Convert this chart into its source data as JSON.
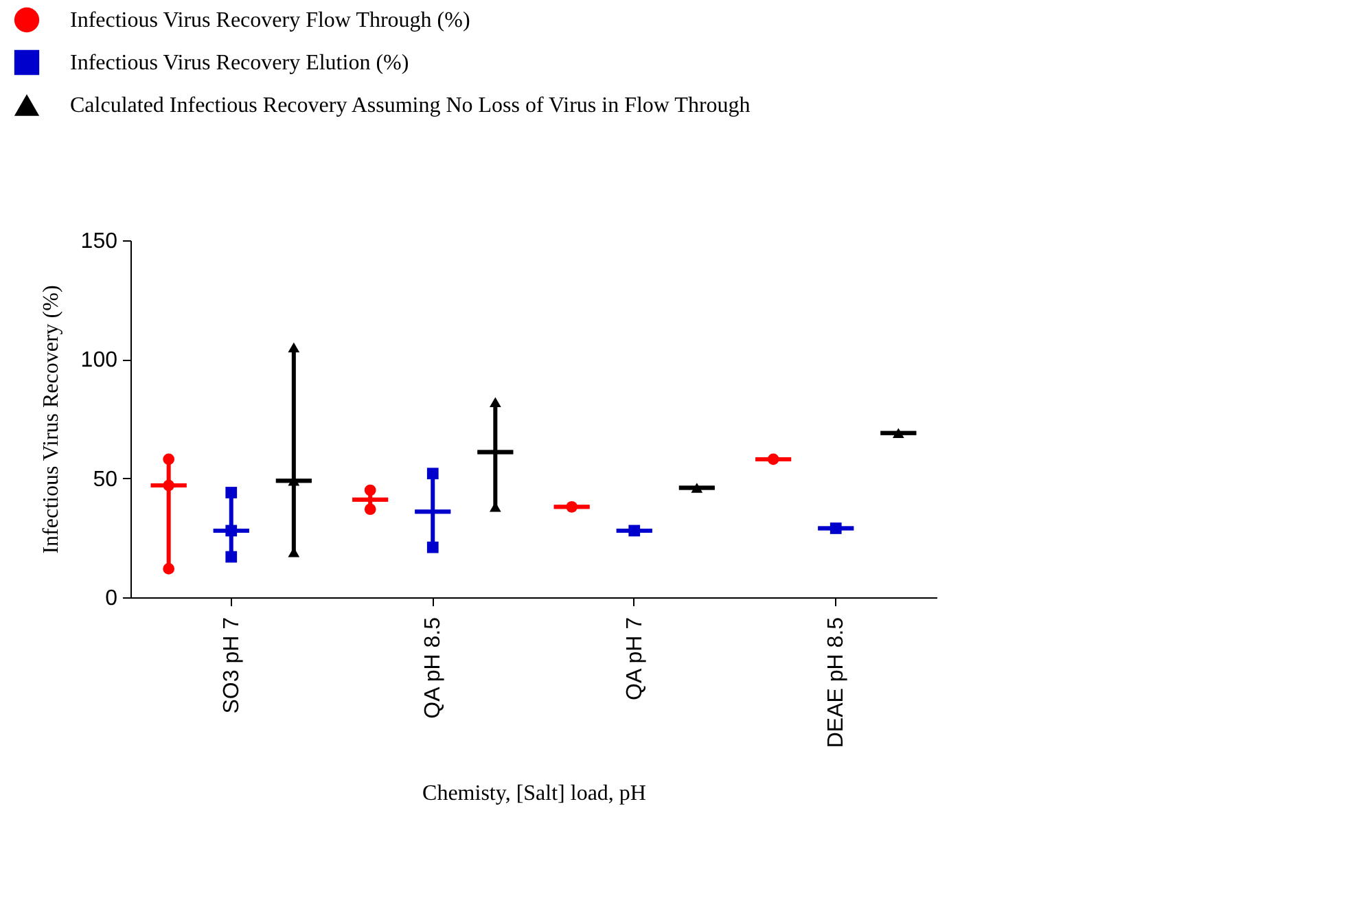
{
  "chart_data": {
    "type": "box",
    "xlabel": "Chemisty, [Salt] load, pH",
    "ylabel": "Infectious Virus Recovery (%)",
    "categories": [
      "SO3 pH 7",
      "QA pH 8.5",
      "QA pH 7",
      "DEAE pH 8.5"
    ],
    "ylim": [
      0,
      150
    ],
    "yticks": [
      0,
      50,
      100,
      150
    ],
    "grid": false,
    "legend": "top left",
    "series": [
      {
        "name": "Infectious Virus Recovery Flow Through (%)",
        "color": "#ff0000",
        "boxes": [
          {
            "low": 12,
            "q1": 47,
            "median": 47,
            "q3": 47,
            "high": 58
          },
          {
            "low": 37,
            "q1": 41,
            "median": 41,
            "q3": 41,
            "high": 45
          },
          {
            "low": 38,
            "q1": 38,
            "median": 38,
            "q3": 38,
            "high": 38
          },
          {
            "low": 58,
            "q1": 58,
            "median": 58,
            "q3": 58,
            "high": 58
          }
        ]
      },
      {
        "name": "Infectious Virus Recovery Elution (%)",
        "color": "#0000cc",
        "boxes": [
          {
            "low": 17,
            "q1": 28,
            "median": 28,
            "q3": 28,
            "high": 44
          },
          {
            "low": 21,
            "q1": 36,
            "median": 36,
            "q3": 36,
            "high": 52
          },
          {
            "low": 28,
            "q1": 28,
            "median": 28,
            "q3": 28,
            "high": 28
          },
          {
            "low": 29,
            "q1": 29,
            "median": 29,
            "q3": 29,
            "high": 29
          }
        ]
      },
      {
        "name": "Calculated Infectious Recovery Assuming No Loss of Virus in Flow Through",
        "color": "#000000",
        "boxes": [
          {
            "low": 19,
            "q1": 49,
            "median": 49,
            "q3": 49,
            "high": 105
          },
          {
            "low": 38,
            "q1": 61,
            "median": 61,
            "q3": 61,
            "high": 82
          },
          {
            "low": 46,
            "q1": 46,
            "median": 46,
            "q3": 46,
            "high": 46
          },
          {
            "low": 69,
            "q1": 69,
            "median": 69,
            "q3": 69,
            "high": 69
          }
        ]
      },
      {
        "type": "scatter",
        "color": "#ff0000",
        "marker": "circle",
        "x": [
          "SO3 pH 7",
          "SO3 pH 7",
          "SO3 pH 7",
          "QA pH 8.5",
          "QA pH 8.5",
          "QA pH 7",
          "DEAE pH 8.5"
        ],
        "values": [
          58,
          47,
          12,
          45,
          37,
          38,
          58
        ]
      },
      {
        "type": "scatter",
        "color": "#0000cc",
        "marker": "square",
        "x": [
          "SO3 pH 7",
          "SO3 pH 7",
          "SO3 pH 7",
          "QA pH 8.5",
          "QA pH 8.5",
          "QA pH 7",
          "DEAE pH 8.5"
        ],
        "values": [
          44,
          28,
          17,
          52,
          21,
          28,
          29
        ]
      },
      {
        "type": "scatter",
        "color": "#000000",
        "marker": "triangle",
        "x": [
          "SO3 pH 7",
          "SO3 pH 7",
          "SO3 pH 7",
          "QA pH 8.5",
          "QA pH 8.5",
          "QA pH 7",
          "DEAE pH 8.5"
        ],
        "values": [
          105,
          49,
          19,
          82,
          38,
          46,
          69
        ]
      }
    ]
  }
}
